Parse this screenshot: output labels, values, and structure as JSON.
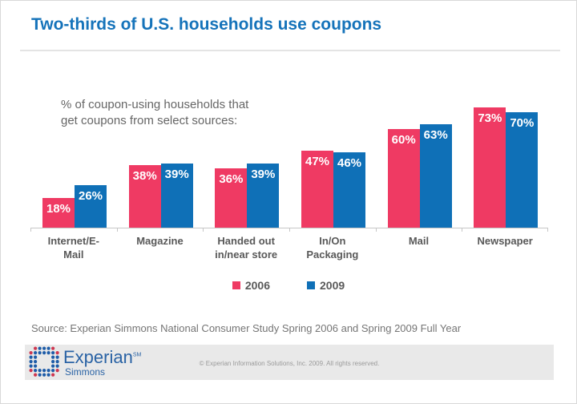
{
  "slide": {
    "title": "Two-thirds of U.S. households use coupons",
    "subtitle": "% of coupon-using households that\nget coupons from select sources:",
    "source": "Source: Experian Simmons National Consumer Study Spring 2006 and Spring 2009 Full Year"
  },
  "chart_data": {
    "type": "bar",
    "title": "% of coupon-using households that get coupons from select sources",
    "categories": [
      "Internet/E-\nMail",
      "Magazine",
      "Handed out\nin/near store",
      "In/On\nPackaging",
      "Mail",
      "Newspaper"
    ],
    "series": [
      {
        "name": "2006",
        "color": "#EF3A63",
        "values": [
          18,
          38,
          36,
          47,
          60,
          73
        ]
      },
      {
        "name": "2009",
        "color": "#0F70B7",
        "values": [
          26,
          39,
          39,
          46,
          63,
          70
        ]
      }
    ],
    "value_suffix": "%",
    "ylim": [
      0,
      80
    ],
    "grid": false,
    "legend_position": "bottom",
    "value_labels": "inside-top"
  },
  "footer": {
    "brand": "Experian",
    "brand_mark": "SM",
    "sub_brand": "Simmons",
    "copyright": "© Experian Information Solutions, Inc. 2009.  All rights reserved."
  },
  "colors": {
    "title_blue": "#1573BA",
    "bar_pink": "#EF3A63",
    "bar_blue": "#0F70B7",
    "axis_gray": "#C6C6C6",
    "label_gray": "#595959",
    "footer_bg": "#E9E9E9",
    "brand_blue": "#2A63A5"
  }
}
